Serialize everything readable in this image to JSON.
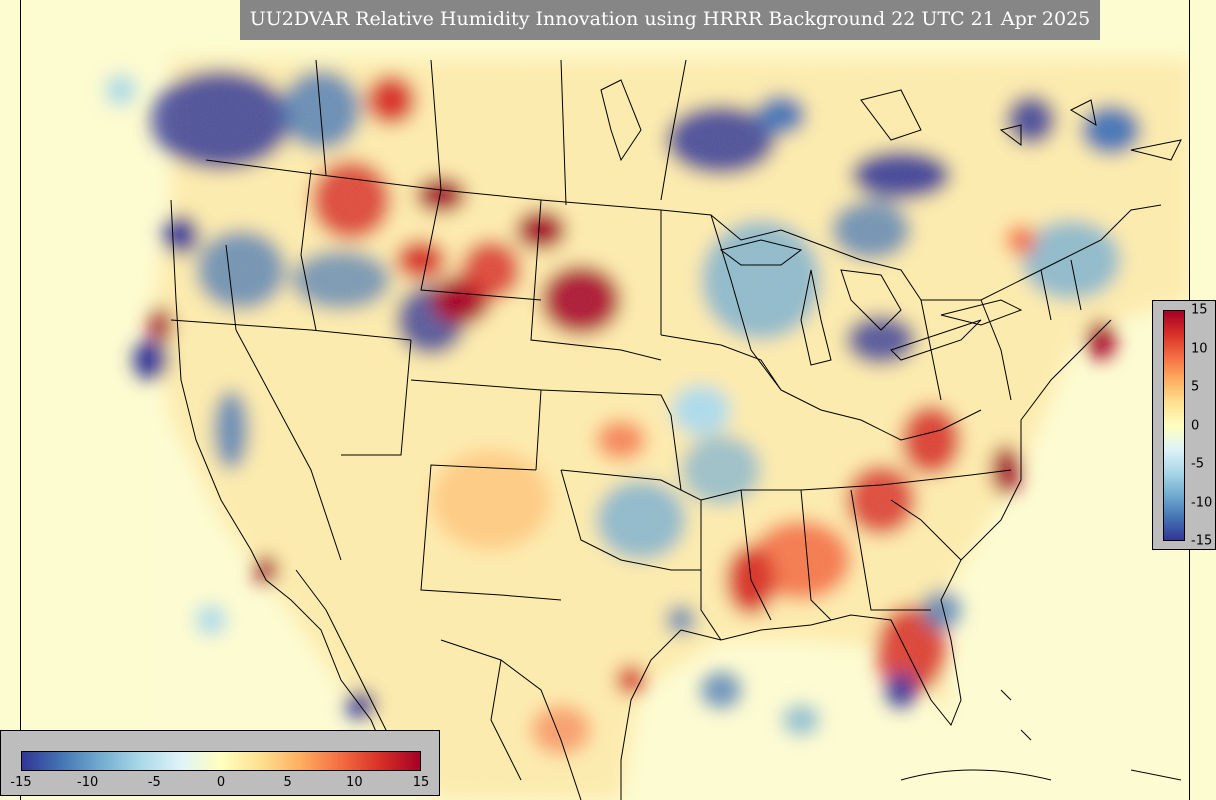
{
  "title": "UU2DVAR Relative Humidity Innovation using HRRR Background 22 UTC 21 Apr 2025",
  "colormap": {
    "name": "RdYlBu_r",
    "range": [
      -15,
      15
    ],
    "colors": [
      "#313695",
      "#4575b4",
      "#74add1",
      "#abd9e9",
      "#e0f3f8",
      "#ffffbf",
      "#fee090",
      "#fdae61",
      "#f46d43",
      "#d73027",
      "#a50026"
    ]
  },
  "colorbar_horizontal": {
    "ticks": [
      "-15",
      "-10",
      "-5",
      "0",
      "5",
      "10",
      "15"
    ]
  },
  "colorbar_vertical": {
    "ticks": [
      "15",
      "10",
      "5",
      "0",
      "-5",
      "-10",
      "-15"
    ]
  },
  "map": {
    "background_color": "#fdfbd0",
    "boundary_color": "#000000"
  }
}
